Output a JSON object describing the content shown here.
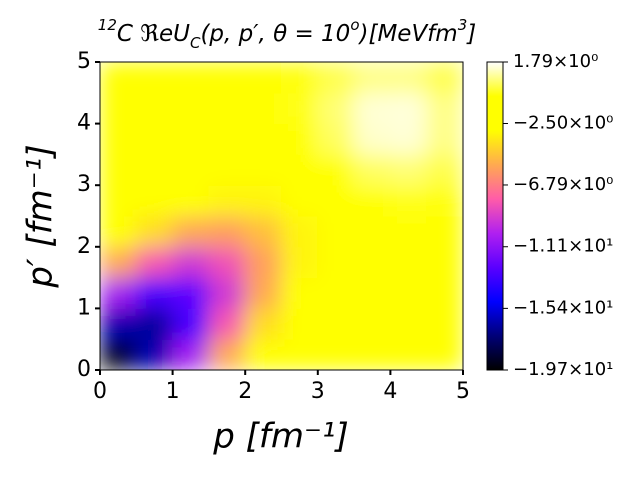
{
  "chart_data": {
    "type": "heatmap",
    "title": [
      "12",
      "C ℜeU",
      "C",
      "(p, p′, θ = 10",
      "o",
      ")[MeVfm",
      "3",
      "]"
    ],
    "xlabel": "p [fm⁻¹]",
    "ylabel": "p′ [fm⁻¹]",
    "x": [
      0.25,
      0.75,
      1.25,
      1.75,
      2.25,
      2.75,
      3.25,
      3.75,
      4.25,
      4.75
    ],
    "y": [
      0.25,
      0.75,
      1.25,
      1.75,
      2.25,
      2.75,
      3.25,
      3.75,
      4.25,
      4.75
    ],
    "z": [
      [
        -19.3,
        -16.3,
        -10.5,
        -5.4,
        -2.55,
        -1.4,
        -1.1,
        -1.0,
        -1.0,
        -1.0
      ],
      [
        -16.3,
        -16.7,
        -13.1,
        -8.0,
        -4.0,
        -2.0,
        -1.2,
        -1.0,
        -1.0,
        -1.0
      ],
      [
        -10.5,
        -13.1,
        -12.5,
        -9.2,
        -5.4,
        -2.7,
        -1.5,
        -1.1,
        -1.0,
        -1.0
      ],
      [
        -5.4,
        -8.0,
        -9.2,
        -8.2,
        -5.7,
        -3.3,
        -1.7,
        -1.0,
        -0.8,
        -1.0
      ],
      [
        -2.55,
        -4.0,
        -5.4,
        -5.7,
        -4.8,
        -3.3,
        -1.9,
        -1.15,
        -0.9,
        -0.9
      ],
      [
        -1.4,
        -2.0,
        -2.7,
        -3.3,
        -3.3,
        -2.55,
        -1.5,
        -0.7,
        -0.4,
        -0.5
      ],
      [
        -1.1,
        -1.2,
        -1.5,
        -1.7,
        -1.9,
        -1.5,
        -0.6,
        0.3,
        0.5,
        0.1
      ],
      [
        -1.0,
        -1.0,
        -1.1,
        -1.0,
        -1.15,
        -0.7,
        0.3,
        1.3,
        1.4,
        0.66
      ],
      [
        -1.0,
        -1.0,
        -1.0,
        -0.8,
        -0.9,
        -0.4,
        0.5,
        1.4,
        1.45,
        0.66
      ],
      [
        -1.0,
        -1.0,
        -1.0,
        -1.0,
        -0.9,
        -0.5,
        0.1,
        0.66,
        0.66,
        0.1
      ]
    ],
    "xlim": [
      0,
      5
    ],
    "ylim": [
      0,
      5
    ],
    "xticks": [
      0,
      1,
      2,
      3,
      4,
      5
    ],
    "yticks": [
      0,
      1,
      2,
      3,
      4,
      5
    ],
    "zlim": [
      -19.7,
      1.79
    ],
    "zticks": [
      {
        "value": 1.79,
        "label": "1.79×10⁰"
      },
      {
        "value": -2.5,
        "label": "−2.50×10⁰"
      },
      {
        "value": -6.79,
        "label": "−6.79×10⁰"
      },
      {
        "value": -11.1,
        "label": "−1.11×10¹"
      },
      {
        "value": -15.4,
        "label": "−1.54×10¹"
      },
      {
        "value": -19.7,
        "label": "−1.97×10¹"
      }
    ],
    "colormap": [
      "#000000",
      "#000078",
      "#0000ff",
      "#5a00ff",
      "#b020f0",
      "#ff5ca8",
      "#ffaa50",
      "#ffff00",
      "#ffff00",
      "#ffffff"
    ]
  }
}
